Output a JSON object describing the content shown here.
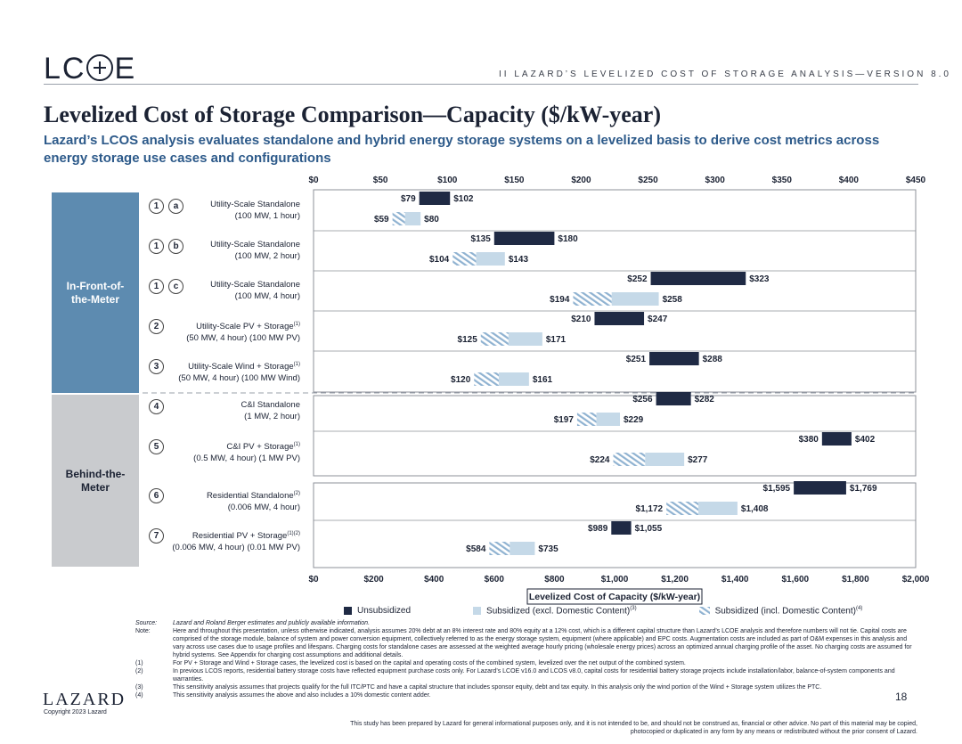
{
  "header": {
    "logo": "LC  E",
    "breadcrumb": "II   LAZARD’S LEVELIZED COST OF STORAGE ANALYSIS—VERSION 8.0"
  },
  "title": "Levelized Cost of Storage Comparison—Capacity ($/kW-year)",
  "subtitle": "Lazard’s LCOS analysis evaluates standalone and hybrid energy storage systems on a levelized basis to derive cost metrics across energy storage use cases and configurations",
  "bands": {
    "ftm": "In-Front-of-the-Meter",
    "btm": "Behind-the-Meter"
  },
  "rows": [
    {
      "num": "1",
      "letter": "a",
      "line1": "Utility-Scale Standalone",
      "line1_sup": "",
      "line2": "(100 MW, 1 hour)"
    },
    {
      "num": "1",
      "letter": "b",
      "line1": "Utility-Scale Standalone",
      "line1_sup": "",
      "line2": "(100 MW, 2 hour)"
    },
    {
      "num": "1",
      "letter": "c",
      "line1": "Utility-Scale Standalone",
      "line1_sup": "",
      "line2": "(100 MW, 4 hour)"
    },
    {
      "num": "2",
      "letter": "",
      "line1": "Utility-Scale PV + Storage",
      "line1_sup": "(1)",
      "line2": "(50 MW, 4 hour) (100 MW PV)"
    },
    {
      "num": "3",
      "letter": "",
      "line1": "Utility-Scale Wind + Storage",
      "line1_sup": "(1)",
      "line2": "(50 MW, 4 hour) (100 MW Wind)"
    },
    {
      "num": "4",
      "letter": "",
      "line1": "C&I Standalone",
      "line1_sup": "",
      "line2": "(1 MW, 2 hour)"
    },
    {
      "num": "5",
      "letter": "",
      "line1": "C&I PV + Storage",
      "line1_sup": "(1)",
      "line2": "(0.5 MW, 4 hour) (1 MW PV)"
    },
    {
      "num": "6",
      "letter": "",
      "line1": "Residential Standalone",
      "line1_sup": "(2)",
      "line2": "(0.006 MW, 4 hour)"
    },
    {
      "num": "7",
      "letter": "",
      "line1": "Residential PV + Storage",
      "line1_sup": "(1)(2)",
      "line2": "(0.006 MW, 4 hour) (0.01 MW PV)"
    }
  ],
  "chart_data": {
    "type": "bar",
    "subtype": "floating-range",
    "xlabel": "Levelized Cost of Capacity ($/kW-year)",
    "axes": {
      "top": {
        "min": 0,
        "max": 450,
        "ticks": [
          "$0",
          "$50",
          "$100",
          "$150",
          "$200",
          "$250",
          "$300",
          "$350",
          "$400",
          "$450"
        ]
      },
      "bottom": {
        "min": 0,
        "max": 2000,
        "ticks": [
          "$0",
          "$200",
          "$400",
          "$600",
          "$800",
          "$1,000",
          "$1,200",
          "$1,400",
          "$1,600",
          "$1,800",
          "$2,000"
        ]
      }
    },
    "legend": [
      {
        "key": "unsub",
        "label": "Unsubsidized",
        "color": "#1f2a44"
      },
      {
        "key": "sub",
        "label": "Subsidized (excl. Domestic Content)",
        "sup": "(3)",
        "color": "#c5d9e8"
      },
      {
        "key": "dom",
        "label": "Subsidized (incl. Domestic Content)",
        "sup": "(4)",
        "color": "#8fb2d1"
      }
    ],
    "series": [
      {
        "row": 0,
        "axis": "top",
        "unsub": [
          79,
          102
        ],
        "sub": [
          59,
          80
        ],
        "labels": {
          "unsub_lo": "$79",
          "unsub_hi": "$102",
          "sub_lo": "$59",
          "sub_hi": "$80"
        }
      },
      {
        "row": 1,
        "axis": "top",
        "unsub": [
          135,
          180
        ],
        "sub": [
          104,
          143
        ],
        "labels": {
          "unsub_lo": "$135",
          "unsub_hi": "$180",
          "sub_lo": "$104",
          "sub_hi": "$143"
        }
      },
      {
        "row": 2,
        "axis": "top",
        "unsub": [
          252,
          323
        ],
        "sub": [
          194,
          258
        ],
        "labels": {
          "unsub_lo": "$252",
          "unsub_hi": "$323",
          "sub_lo": "$194",
          "sub_hi": "$258"
        }
      },
      {
        "row": 3,
        "axis": "top",
        "unsub": [
          210,
          247
        ],
        "sub": [
          125,
          171
        ],
        "labels": {
          "unsub_lo": "$210",
          "unsub_hi": "$247",
          "sub_lo": "$125",
          "sub_hi": "$171"
        }
      },
      {
        "row": 4,
        "axis": "top",
        "unsub": [
          251,
          288
        ],
        "sub": [
          120,
          161
        ],
        "labels": {
          "unsub_lo": "$251",
          "unsub_hi": "$288",
          "sub_lo": "$120",
          "sub_hi": "$161"
        }
      },
      {
        "row": 5,
        "axis": "top",
        "unsub": [
          256,
          282
        ],
        "sub": [
          197,
          229
        ],
        "labels": {
          "unsub_lo": "$256",
          "unsub_hi": "$282",
          "sub_lo": "$197",
          "sub_hi": "$229"
        }
      },
      {
        "row": 6,
        "axis": "top",
        "unsub": [
          380,
          402
        ],
        "sub": [
          224,
          277
        ],
        "labels": {
          "unsub_lo": "$380",
          "unsub_hi": "$402",
          "sub_lo": "$224",
          "sub_hi": "$277"
        }
      },
      {
        "row": 7,
        "axis": "bottom",
        "unsub": [
          1595,
          1769
        ],
        "sub": [
          1172,
          1408
        ],
        "labels": {
          "unsub_lo": "$1,595",
          "unsub_hi": "$1,769",
          "sub_lo": "$1,172",
          "sub_hi": "$1,408"
        }
      },
      {
        "row": 8,
        "axis": "bottom",
        "unsub": [
          989,
          1055
        ],
        "sub": [
          584,
          735
        ],
        "labels": {
          "unsub_lo": "$989",
          "unsub_hi": "$1,055",
          "sub_lo": "$584",
          "sub_hi": "$735"
        }
      }
    ]
  },
  "notes": {
    "source_key": "Source:",
    "source": "Lazard and Roland Berger estimates and publicly available information.",
    "note_key": "Note:",
    "note": "Here and throughout this presentation, unless otherwise indicated, analysis assumes 20% debt at an 8% interest rate and 80% equity at a 12% cost, which is a different capital structure than Lazard’s LCOE analysis and therefore numbers will not tie. Capital costs are comprised of the storage module, balance of system and power conversion equipment, collectively referred to as the energy storage system, equipment (where applicable) and EPC costs. Augmentation costs are included as part of O&M expenses in this analysis and vary across use cases due to usage profiles and lifespans. Charging costs for standalone cases are assessed at the weighted average hourly pricing (wholesale energy prices) across an optimized annual charging profile of the asset. No charging costs are assumed for hybrid systems. See Appendix for charging cost assumptions and additional details.",
    "footnotes": [
      {
        "key": "(1)",
        "text": "For PV + Storage and Wind + Storage cases, the levelized cost is based on the capital and operating costs of the combined system, levelized over the net output of the combined system."
      },
      {
        "key": "(2)",
        "text": "In previous LCOS reports, residential battery storage costs have reflected equipment purchase costs only. For Lazard’s LCOE v16.0 and LCOS v8.0, capital costs for residential battery storage projects include installation/labor, balance-of-system components and warranties."
      },
      {
        "key": "(3)",
        "text": "This sensitivity analysis assumes that projects qualify for the full ITC/PTC and have a capital structure that includes sponsor equity, debt and tax equity. In this analysis only the wind portion of the Wind + Storage system utilizes the PTC."
      },
      {
        "key": "(4)",
        "text": "This sensitivity analysis assumes the above and also includes a 10% domestic content adder."
      }
    ]
  },
  "footer": {
    "brand": "LAZARD",
    "copyright": "Copyright 2023 Lazard",
    "page": "18",
    "disclaimer": "This study has been prepared by Lazard for general informational purposes only, and it is not intended to be, and should not be construed as, financial or other advice. No part of this material may be copied, photocopied or duplicated in any form by any means or redistributed without the prior consent of Lazard."
  }
}
